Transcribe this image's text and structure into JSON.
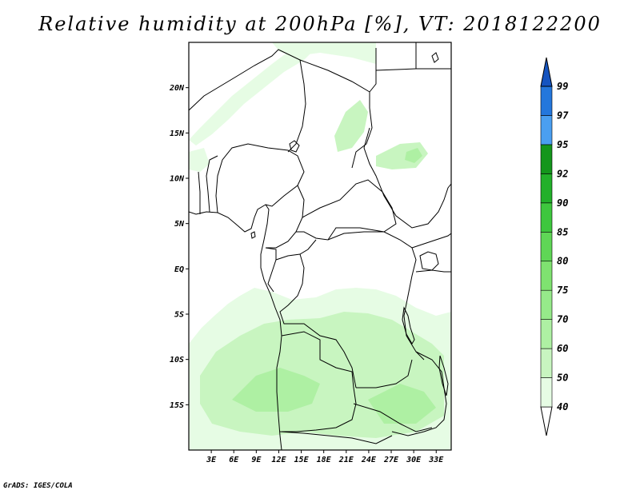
{
  "title": "Relative humidity at 200hPa [%], VT: 2018122200",
  "credit": "GrADS: IGES/COLA",
  "map": {
    "lat_ticks": [
      "20N",
      "15N",
      "10N",
      "5N",
      "EQ",
      "5S",
      "10S",
      "15S"
    ],
    "lat_values": [
      20,
      15,
      10,
      5,
      0,
      -5,
      -10,
      -15
    ],
    "lon_ticks": [
      "3E",
      "6E",
      "9E",
      "12E",
      "15E",
      "18E",
      "21E",
      "24E",
      "27E",
      "30E",
      "33E"
    ],
    "lon_values": [
      3,
      6,
      9,
      12,
      15,
      18,
      21,
      24,
      27,
      30,
      33
    ],
    "lon_range": [
      0,
      35
    ],
    "lat_range": [
      -20,
      25
    ]
  },
  "colorbar": {
    "levels": [
      "40",
      "50",
      "60",
      "70",
      "75",
      "80",
      "85",
      "90",
      "92",
      "95",
      "97",
      "99"
    ],
    "colors": [
      "#e6fce4",
      "#c8f5c0",
      "#aef0a3",
      "#96ea8a",
      "#7fe270",
      "#5fd656",
      "#3ec73e",
      "#22b02a",
      "#14961c",
      "#4a9ff0",
      "#2477dc",
      "#1554c0"
    ],
    "shading_colors": {
      "light": "#e6fce4",
      "medium": "#c8f5c0",
      "dark": "#aef0a3"
    }
  }
}
